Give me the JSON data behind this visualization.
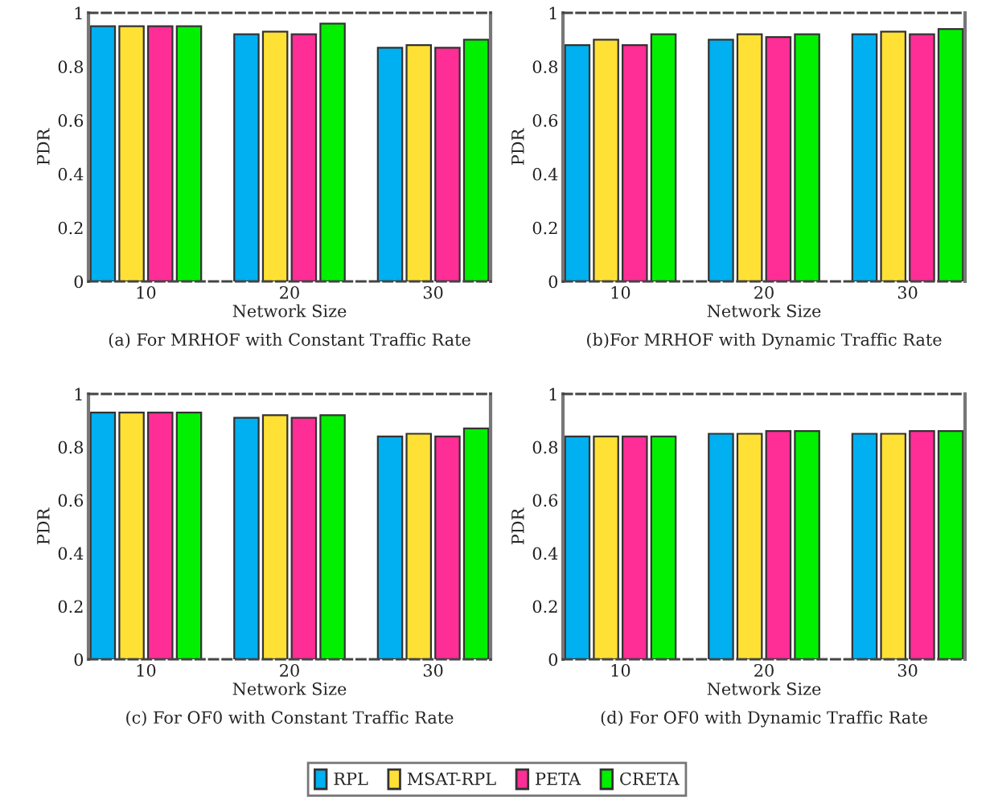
{
  "chart_data": [
    {
      "type": "bar",
      "title": "(a) For MRHOF with Constant Traffic Rate",
      "xlabel": "Network Size",
      "ylabel": "PDR",
      "categories": [
        "10",
        "20",
        "30"
      ],
      "ylim": [
        0,
        1
      ],
      "yticks": [
        0,
        0.2,
        0.4,
        0.6,
        0.8,
        1
      ],
      "grid": false,
      "legend": "bottom",
      "series": [
        {
          "name": "RPL",
          "color": "#00b0f0",
          "values": [
            0.95,
            0.92,
            0.87
          ]
        },
        {
          "name": "MSAT-RPL",
          "color": "#ffe135",
          "values": [
            0.95,
            0.93,
            0.88
          ]
        },
        {
          "name": "PETA",
          "color": "#ff2d96",
          "values": [
            0.95,
            0.92,
            0.87
          ]
        },
        {
          "name": "CRETA",
          "color": "#00f000",
          "values": [
            0.95,
            0.96,
            0.9
          ]
        }
      ]
    },
    {
      "type": "bar",
      "title": "(b)For MRHOF with Dynamic Traffic Rate",
      "xlabel": "Network Size",
      "ylabel": "PDR",
      "categories": [
        "10",
        "20",
        "30"
      ],
      "ylim": [
        0,
        1
      ],
      "yticks": [
        0,
        0.2,
        0.4,
        0.6,
        0.8,
        1
      ],
      "grid": false,
      "series": [
        {
          "color": "#00b0f0",
          "values": [
            0.88,
            0.9,
            0.92
          ]
        },
        {
          "color": "#ffe135",
          "values": [
            0.9,
            0.92,
            0.93
          ]
        },
        {
          "color": "#ff2d96",
          "values": [
            0.88,
            0.91,
            0.92
          ]
        },
        {
          "color": "#00f000",
          "values": [
            0.92,
            0.92,
            0.94
          ]
        }
      ]
    },
    {
      "type": "bar",
      "title": "(c) For OF0 with Constant Traffic Rate",
      "xlabel": "Network Size",
      "ylabel": "PDR",
      "categories": [
        "10",
        "20",
        "30"
      ],
      "ylim": [
        0,
        1
      ],
      "yticks": [
        0,
        0.2,
        0.4,
        0.6,
        0.8,
        1
      ],
      "grid": false,
      "series": [
        {
          "color": "#00b0f0",
          "values": [
            0.93,
            0.91,
            0.84
          ]
        },
        {
          "color": "#ffe135",
          "values": [
            0.93,
            0.92,
            0.85
          ]
        },
        {
          "color": "#ff2d96",
          "values": [
            0.93,
            0.91,
            0.84
          ]
        },
        {
          "color": "#00f000",
          "values": [
            0.93,
            0.92,
            0.87
          ]
        }
      ]
    },
    {
      "type": "bar",
      "title": "(d) For OF0 with Dynamic Traffic Rate",
      "xlabel": "Network Size",
      "ylabel": "PDR",
      "categories": [
        "10",
        "20",
        "30"
      ],
      "ylim": [
        0,
        1
      ],
      "yticks": [
        0,
        0.2,
        0.4,
        0.6,
        0.8,
        1
      ],
      "grid": false,
      "series": [
        {
          "color": "#00b0f0",
          "values": [
            0.84,
            0.85,
            0.85
          ]
        },
        {
          "color": "#ffe135",
          "values": [
            0.84,
            0.85,
            0.85
          ]
        },
        {
          "color": "#ff2d96",
          "values": [
            0.84,
            0.86,
            0.86
          ]
        },
        {
          "color": "#00f000",
          "values": [
            0.84,
            0.86,
            0.86
          ]
        }
      ]
    }
  ]
}
